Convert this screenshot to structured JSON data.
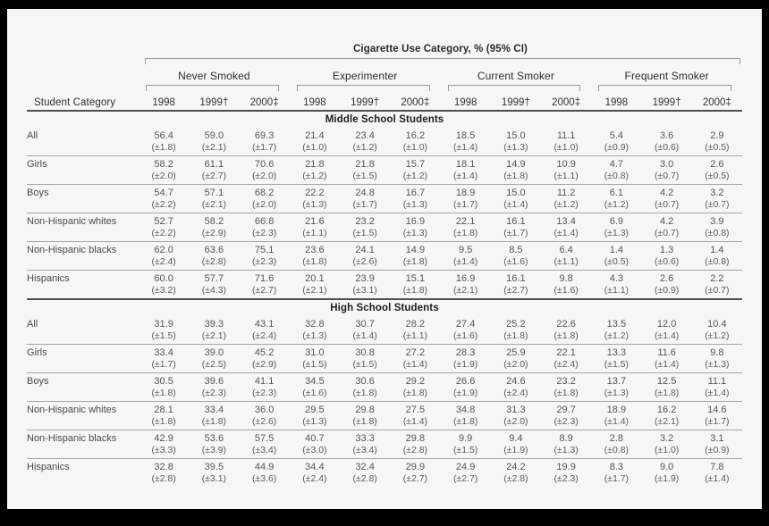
{
  "table": {
    "title": "Cigarette Use Category, % (95% CI)",
    "row_header": "Student Category",
    "groups": [
      {
        "label": "Never Smoked"
      },
      {
        "label": "Experimenter"
      },
      {
        "label": "Current Smoker"
      },
      {
        "label": "Frequent Smoker"
      }
    ],
    "year_labels": [
      "1998",
      "1999†",
      "2000‡"
    ],
    "sections": [
      {
        "title": "Middle School Students",
        "rows": [
          {
            "label": "All",
            "values": [
              "56.4",
              "59.0",
              "69.3",
              "21.4",
              "23.4",
              "16.2",
              "18.5",
              "15.0",
              "11.1",
              "5.4",
              "3.6",
              "2.9"
            ],
            "ci": [
              "(±1.8)",
              "(±2.1)",
              "(±1.7)",
              "(±1.0)",
              "(±1.2)",
              "(±1.0)",
              "(±1.4)",
              "(±1.3)",
              "(±1.0)",
              "(±0.9)",
              "(±0.6)",
              "(±0.5)"
            ]
          },
          {
            "label": "Girls",
            "values": [
              "58.2",
              "61.1",
              "70.6",
              "21.8",
              "21.8",
              "15.7",
              "18.1",
              "14.9",
              "10.9",
              "4.7",
              "3.0",
              "2.6"
            ],
            "ci": [
              "(±2.0)",
              "(±2.7)",
              "(±2.0)",
              "(±1.2)",
              "(±1.5)",
              "(±1.2)",
              "(±1.4)",
              "(±1.8)",
              "(±1.1)",
              "(±0.8)",
              "(±0.7)",
              "(±0.5)"
            ]
          },
          {
            "label": "Boys",
            "values": [
              "54.7",
              "57.1",
              "68.2",
              "22.2",
              "24.8",
              "16.7",
              "18.9",
              "15.0",
              "11.2",
              "6.1",
              "4.2",
              "3.2"
            ],
            "ci": [
              "(±2.2)",
              "(±2.1)",
              "(±2.0)",
              "(±1.3)",
              "(±1.7)",
              "(±1.3)",
              "(±1.7)",
              "(±1.4)",
              "(±1.2)",
              "(±1.2)",
              "(±0.7)",
              "(±0.7)"
            ]
          },
          {
            "label": "Non-Hispanic whites",
            "values": [
              "52.7",
              "58.2",
              "66.8",
              "21.6",
              "23.2",
              "16.9",
              "22.1",
              "16.1",
              "13.4",
              "6.9",
              "4.2",
              "3.9"
            ],
            "ci": [
              "(±2.2)",
              "(±2.9)",
              "(±2.3)",
              "(±1.1)",
              "(±1.5)",
              "(±1.3)",
              "(±1.8)",
              "(±1.7)",
              "(±1.4)",
              "(±1.3)",
              "(±0.7)",
              "(±0.8)"
            ]
          },
          {
            "label": "Non-Hispanic blacks",
            "values": [
              "62.0",
              "63.6",
              "75.1",
              "23.6",
              "24.1",
              "14.9",
              "9.5",
              "8.5",
              "6.4",
              "1.4",
              "1.3",
              "1.4"
            ],
            "ci": [
              "(±2.4)",
              "(±2.8)",
              "(±2.3)",
              "(±1.8)",
              "(±2.6)",
              "(±1.8)",
              "(±1.4)",
              "(±1.6)",
              "(±1.1)",
              "(±0.5)",
              "(±0.6)",
              "(±0.8)"
            ]
          },
          {
            "label": "Hispanics",
            "values": [
              "60.0",
              "57.7",
              "71.6",
              "20.1",
              "23.9",
              "15.1",
              "16.9",
              "16.1",
              "9.8",
              "4.3",
              "2.6",
              "2.2"
            ],
            "ci": [
              "(±3.2)",
              "(±4.3)",
              "(±2.7)",
              "(±2.1)",
              "(±3.1)",
              "(±1.8)",
              "(±2.1)",
              "(±2.7)",
              "(±1.6)",
              "(±1.1)",
              "(±0.9)",
              "(±0.7)"
            ]
          }
        ]
      },
      {
        "title": "High School Students",
        "rows": [
          {
            "label": "All",
            "values": [
              "31.9",
              "39.3",
              "43.1",
              "32.8",
              "30.7",
              "28.2",
              "27.4",
              "25.2",
              "22.6",
              "13.5",
              "12.0",
              "10.4"
            ],
            "ci": [
              "(±1.5)",
              "(±2.1)",
              "(±2.4)",
              "(±1.3)",
              "(±1.4)",
              "(±1.1)",
              "(±1.6)",
              "(±1.8)",
              "(±1.8)",
              "(±1.2)",
              "(±1.4)",
              "(±1.2)"
            ]
          },
          {
            "label": "Girls",
            "values": [
              "33.4",
              "39.0",
              "45.2",
              "31.0",
              "30.8",
              "27.2",
              "28.3",
              "25.9",
              "22.1",
              "13.3",
              "11.6",
              "9.8"
            ],
            "ci": [
              "(±1.7)",
              "(±2.5)",
              "(±2.9)",
              "(±1.5)",
              "(±1.5)",
              "(±1.4)",
              "(±1.9)",
              "(±2.0)",
              "(±2.4)",
              "(±1.5)",
              "(±1.4)",
              "(±1.3)"
            ]
          },
          {
            "label": "Boys",
            "values": [
              "30.5",
              "39.6",
              "41.1",
              "34.5",
              "30.6",
              "29.2",
              "26.6",
              "24.6",
              "23.2",
              "13.7",
              "12.5",
              "11.1"
            ],
            "ci": [
              "(±1.8)",
              "(±2.3)",
              "(±2.3)",
              "(±1.6)",
              "(±1.8)",
              "(±1.8)",
              "(±1.9)",
              "(±2.4)",
              "(±1.8)",
              "(±1.3)",
              "(±1.8)",
              "(±1.4)"
            ]
          },
          {
            "label": "Non-Hispanic whites",
            "values": [
              "28.1",
              "33.4",
              "36.0",
              "29.5",
              "29.8",
              "27.5",
              "34.8",
              "31.3",
              "29.7",
              "18.9",
              "16.2",
              "14.6"
            ],
            "ci": [
              "(±1.8)",
              "(±1.8)",
              "(±2.6)",
              "(±1.3)",
              "(±1.8)",
              "(±1.4)",
              "(±1.8)",
              "(±2.0)",
              "(±2.3)",
              "(±1.4)",
              "(±2.1)",
              "(±1.7)"
            ]
          },
          {
            "label": "Non-Hispanic blacks",
            "values": [
              "42.9",
              "53.6",
              "57.5",
              "40.7",
              "33.3",
              "29.8",
              "9.9",
              "9.4",
              "8.9",
              "2.8",
              "3.2",
              "3.1"
            ],
            "ci": [
              "(±3.3)",
              "(±3.9)",
              "(±3.4)",
              "(±3.0)",
              "(±3.4)",
              "(±2.8)",
              "(±1.5)",
              "(±1.9)",
              "(±1.3)",
              "(±0.8)",
              "(±1.0)",
              "(±0.9)"
            ]
          },
          {
            "label": "Hispanics",
            "values": [
              "32.8",
              "39.5",
              "44.9",
              "34.4",
              "32.4",
              "29.9",
              "24.9",
              "24.2",
              "19.9",
              "8.3",
              "9.0",
              "7.8"
            ],
            "ci": [
              "(±2.8)",
              "(±3.1)",
              "(±3.6)",
              "(±2.4)",
              "(±2.8)",
              "(±2.7)",
              "(±2.7)",
              "(±2.8)",
              "(±2.3)",
              "(±1.7)",
              "(±1.9)",
              "(±1.4)"
            ]
          }
        ]
      }
    ]
  },
  "colors": {
    "frame": "#000000",
    "sheet_background": "#f6f6f5",
    "rule_dark": "#4f4f4f",
    "rule_light": "#a6a6a6",
    "bracket": "#9b9b9b",
    "text_dark": "#2b2b2b",
    "text_data": "#555555"
  }
}
